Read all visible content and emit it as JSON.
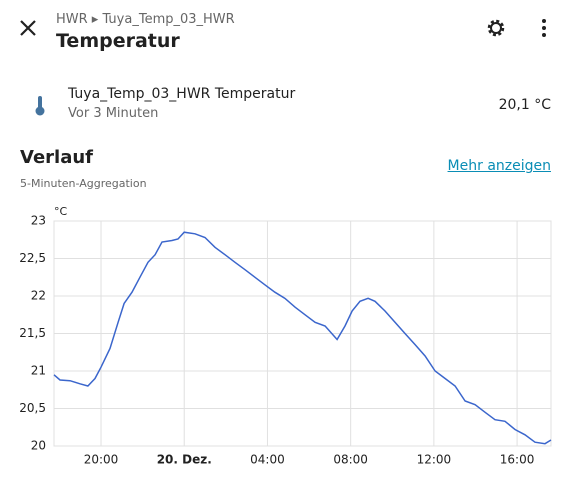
{
  "header": {
    "breadcrumb": [
      "HWR",
      "Tuya_Temp_03_HWR"
    ],
    "title": "Temperatur"
  },
  "entity": {
    "name": "Tuya_Temp_03_HWR Temperatur",
    "time": "Vor 3 Minuten",
    "state": "20,1 °C"
  },
  "history": {
    "title": "Verlauf",
    "link": "Mehr anzeigen",
    "subtitle": "5-Minuten-Aggregation"
  },
  "chart_data": {
    "type": "line",
    "y_unit": "°C",
    "color": "#3b66cc",
    "grid": true,
    "xlim": [
      17.74,
      41.63
    ],
    "ylim": [
      20,
      23
    ],
    "xticks": [
      {
        "value": 20,
        "label": "20:00"
      },
      {
        "value": 24,
        "label": "20. Dez.",
        "bold": true
      },
      {
        "value": 28,
        "label": "04:00"
      },
      {
        "value": 32,
        "label": "08:00"
      },
      {
        "value": 36,
        "label": "12:00"
      },
      {
        "value": 40,
        "label": "16:00"
      }
    ],
    "yticks": [
      20,
      {
        "value": 20.5,
        "label": "20,5"
      },
      21,
      {
        "value": 21.5,
        "label": "21,5"
      },
      22,
      {
        "value": 22.5,
        "label": "22,5"
      },
      23
    ],
    "x": [
      17.74,
      18.03,
      18.51,
      18.99,
      19.37,
      19.71,
      20.0,
      20.43,
      20.82,
      21.11,
      21.49,
      21.87,
      22.26,
      22.6,
      22.93,
      23.41,
      23.7,
      24.0,
      24.52,
      25.0,
      25.48,
      25.96,
      26.44,
      26.92,
      27.4,
      27.88,
      28.36,
      28.84,
      29.33,
      29.81,
      30.29,
      30.77,
      31.35,
      31.73,
      32.07,
      32.45,
      32.84,
      33.17,
      33.65,
      34.13,
      34.61,
      35.1,
      35.58,
      36.06,
      36.54,
      37.02,
      37.5,
      37.98,
      38.46,
      38.94,
      39.42,
      39.9,
      40.38,
      40.86,
      41.34,
      41.63
    ],
    "series": [
      {
        "values": [
          20.95,
          20.88,
          20.87,
          20.83,
          20.8,
          20.9,
          21.05,
          21.3,
          21.65,
          21.9,
          22.05,
          22.25,
          22.45,
          22.55,
          22.72,
          22.74,
          22.76,
          22.85,
          22.83,
          22.78,
          22.65,
          22.55,
          22.45,
          22.35,
          22.25,
          22.15,
          22.05,
          21.97,
          21.85,
          21.75,
          21.65,
          21.6,
          21.42,
          21.6,
          21.8,
          21.93,
          21.97,
          21.93,
          21.8,
          21.65,
          21.5,
          21.35,
          21.2,
          21.0,
          20.9,
          20.8,
          20.6,
          20.55,
          20.45,
          20.35,
          20.33,
          20.22,
          20.15,
          20.05,
          20.03,
          20.08
        ]
      }
    ]
  }
}
